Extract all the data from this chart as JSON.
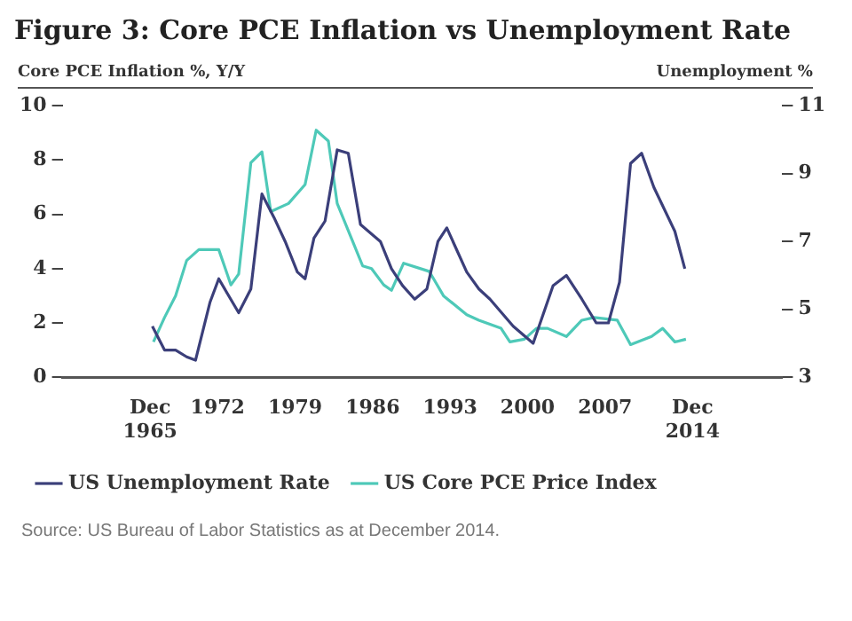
{
  "chart_data": {
    "type": "line",
    "title": "Figure 3: Core PCE Inflation vs Unemployment Rate",
    "ylabel": "Core PCE Inflation %, Y/Y",
    "y2label": "Unemployment %",
    "xlim": [
      1958,
      2023
    ],
    "xticks": [
      {
        "value": 1965.9,
        "label": "Dec\n1965"
      },
      1972,
      1979,
      1986,
      1993,
      2000,
      2007,
      {
        "value": 2014.9,
        "label": "Dec\n2014"
      }
    ],
    "ylim": [
      0,
      10
    ],
    "yticks": [
      0,
      2,
      4,
      6,
      8,
      10
    ],
    "y2lim": [
      3,
      11
    ],
    "y2ticks": [
      3,
      5,
      7,
      9,
      11
    ],
    "grid": false,
    "legend": "bottom",
    "marker": "none",
    "line_style": "solid",
    "series": [
      {
        "name": "US Unemployment Rate",
        "color": "#3b3f7a",
        "axis": "y2",
        "x": [
          1966.1,
          1967.2,
          1968.2,
          1969.2,
          1970.0,
          1971.3,
          1972.1,
          1973.9,
          1975.0,
          1976.0,
          1977.1,
          1978.1,
          1979.2,
          1979.9,
          1980.7,
          1981.7,
          1982.8,
          1983.8,
          1984.9,
          1986.7,
          1987.7,
          1988.7,
          1989.8,
          1990.9,
          1991.9,
          1992.7,
          1994.5,
          1995.6,
          1996.6,
          1998.7,
          2000.5,
          2002.3,
          2003.5,
          2004.9,
          2006.2,
          2007.3,
          2008.3,
          2009.3,
          2010.3,
          2011.4,
          2013.3,
          2014.2
        ],
        "values": [
          4.5,
          3.8,
          3.8,
          3.6,
          3.5,
          5.2,
          5.9,
          4.9,
          5.6,
          8.4,
          7.7,
          7.0,
          6.1,
          5.9,
          7.1,
          7.6,
          9.7,
          9.6,
          7.5,
          7.0,
          6.2,
          5.7,
          5.3,
          5.6,
          7.0,
          7.4,
          6.1,
          5.6,
          5.3,
          4.5,
          4.0,
          5.7,
          6.0,
          5.3,
          4.6,
          4.6,
          5.8,
          9.3,
          9.6,
          8.6,
          7.3,
          6.2
        ]
      },
      {
        "name": "US Core PCE Price Index",
        "color": "#4ec9b8",
        "x": [
          1966.2,
          1967.2,
          1968.2,
          1969.2,
          1970.3,
          1972.1,
          1973.2,
          1973.9,
          1975.0,
          1976.0,
          1976.8,
          1978.4,
          1979.9,
          1980.9,
          1982.0,
          1982.8,
          1984.1,
          1985.1,
          1985.9,
          1987.0,
          1987.7,
          1988.8,
          1991.1,
          1991.4,
          1992.4,
          1994.5,
          1995.6,
          1997.6,
          1998.4,
          1999.7,
          2000.8,
          2001.8,
          2003.5,
          2004.9,
          2006.0,
          2008.1,
          2009.3,
          2011.2,
          2012.2,
          2013.3,
          2014.3
        ],
        "values": [
          1.3,
          2.2,
          3.0,
          4.3,
          4.7,
          4.7,
          3.4,
          3.8,
          7.9,
          8.3,
          6.1,
          6.4,
          7.1,
          9.1,
          8.7,
          6.4,
          5.1,
          4.1,
          4.0,
          3.4,
          3.2,
          4.2,
          3.9,
          3.7,
          3.0,
          2.3,
          2.1,
          1.8,
          1.3,
          1.4,
          1.8,
          1.8,
          1.5,
          2.1,
          2.2,
          2.1,
          1.2,
          1.5,
          1.8,
          1.3,
          1.4
        ]
      }
    ],
    "annotations": [
      "Source: US Bureau of Labor Statistics as at December 2014."
    ]
  }
}
